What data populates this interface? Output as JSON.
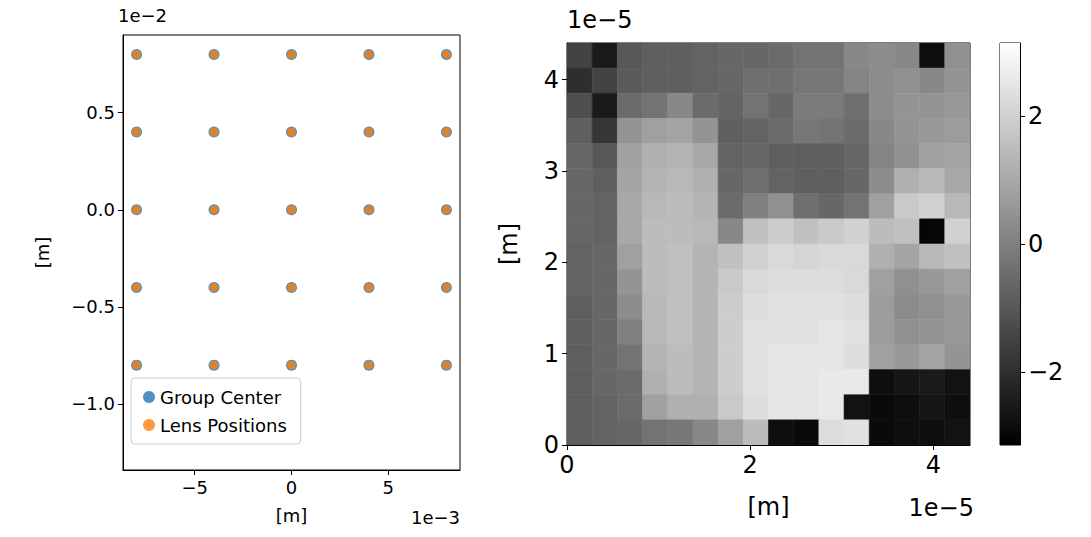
{
  "chart_data": [
    {
      "type": "scatter",
      "x_label": "[m]",
      "y_label": "[m]",
      "x_offset_label": "1e−3",
      "y_offset_label": "1e−2",
      "xlim": [
        -8.7,
        8.7
      ],
      "ylim": [
        -1.34,
        0.9
      ],
      "xticks": [
        {
          "value": -5,
          "label": "−5"
        },
        0,
        5
      ],
      "yticks": [
        {
          "value": -1.0,
          "label": "−1.0"
        },
        {
          "value": -0.5,
          "label": "−0.5"
        },
        {
          "value": 0,
          "label": "0.0"
        },
        0.5
      ],
      "legend": "lower left",
      "series": [
        {
          "name": "Group Center",
          "color": "#1f77b4",
          "marker": "circle",
          "x": [
            -8,
            -4,
            0,
            4,
            8,
            -8,
            -4,
            0,
            4,
            8,
            -8,
            -4,
            0,
            4,
            8,
            -8,
            -4,
            0,
            4,
            8,
            -8,
            -4,
            0,
            4,
            8
          ],
          "y": [
            0.8,
            0.8,
            0.8,
            0.8,
            0.8,
            0.4,
            0.4,
            0.4,
            0.4,
            0.4,
            0,
            0,
            0,
            0,
            0,
            -0.4,
            -0.4,
            -0.4,
            -0.4,
            -0.4,
            -0.8,
            -0.8,
            -0.8,
            -0.8,
            -0.8
          ]
        },
        {
          "name": "Lens Positions",
          "color": "#ff7f0e",
          "marker": "circle",
          "x": [
            -8,
            -4,
            0,
            4,
            8,
            -8,
            -4,
            0,
            4,
            8,
            -8,
            -4,
            0,
            4,
            8,
            -8,
            -4,
            0,
            4,
            8,
            -8,
            -4,
            0,
            4,
            8
          ],
          "y": [
            0.8,
            0.8,
            0.8,
            0.8,
            0.8,
            0.4,
            0.4,
            0.4,
            0.4,
            0.4,
            0,
            0,
            0,
            0,
            0,
            -0.4,
            -0.4,
            -0.4,
            -0.4,
            -0.4,
            -0.8,
            -0.8,
            -0.8,
            -0.8,
            -0.8
          ]
        }
      ]
    },
    {
      "type": "heatmap",
      "x_label": "[m]",
      "y_label": "[m]",
      "x_offset_label": "1e−5",
      "y_offset_label": "1e−5",
      "xlim": [
        0,
        4.4
      ],
      "ylim": [
        0,
        4.4
      ],
      "xticks": [
        0,
        2,
        4
      ],
      "yticks": [
        0,
        1,
        2,
        3,
        4
      ],
      "z": [
        [
          -1.5,
          -2.5,
          -1.0,
          -0.8,
          -0.8,
          -0.7,
          -0.6,
          -0.6,
          -0.5,
          -0.3,
          -0.3,
          0.2,
          0.3,
          0.2,
          -2.8,
          0.4
        ],
        [
          -2.0,
          -1.5,
          -0.9,
          -0.8,
          -0.8,
          -0.7,
          -0.6,
          -0.4,
          -0.4,
          -0.2,
          -0.2,
          0.1,
          0.3,
          0.4,
          0.2,
          0.5
        ],
        [
          -1.2,
          -2.5,
          -0.5,
          -0.3,
          0.2,
          -0.5,
          -0.7,
          -0.3,
          -0.6,
          -0.1,
          -0.1,
          -0.4,
          0.3,
          0.5,
          0.5,
          0.6
        ],
        [
          -0.8,
          -1.8,
          0.5,
          0.8,
          0.9,
          0.5,
          -0.8,
          -0.7,
          -0.5,
          -0.2,
          -0.3,
          -0.5,
          0.2,
          0.5,
          0.6,
          0.7
        ],
        [
          -0.6,
          -1.0,
          0.8,
          1.2,
          1.3,
          1.0,
          -0.7,
          -0.6,
          -0.8,
          -0.8,
          -0.8,
          -0.6,
          0.1,
          0.4,
          0.8,
          0.9
        ],
        [
          -0.6,
          -0.8,
          0.9,
          1.3,
          1.4,
          1.2,
          -0.6,
          -0.4,
          -0.7,
          -0.8,
          -0.8,
          -0.6,
          0.3,
          1.2,
          1.4,
          1.0
        ],
        [
          -0.6,
          -0.7,
          1.0,
          1.4,
          1.5,
          1.3,
          -0.5,
          0.0,
          0.4,
          -0.4,
          -0.6,
          -0.3,
          0.8,
          1.8,
          2.0,
          1.4
        ],
        [
          -0.6,
          -0.7,
          1.0,
          1.5,
          1.5,
          1.4,
          0.2,
          1.6,
          1.9,
          1.6,
          1.8,
          2.0,
          1.5,
          1.6,
          -3.0,
          2.0
        ],
        [
          -0.7,
          -0.6,
          0.8,
          1.5,
          1.6,
          1.3,
          1.6,
          2.0,
          2.2,
          2.1,
          2.2,
          2.2,
          1.2,
          0.9,
          1.4,
          1.6
        ],
        [
          -0.7,
          -0.6,
          0.5,
          1.5,
          1.6,
          1.3,
          1.8,
          2.2,
          2.3,
          2.3,
          2.3,
          2.2,
          0.8,
          0.4,
          0.6,
          0.8
        ],
        [
          -0.8,
          -0.6,
          0.3,
          1.4,
          1.6,
          1.3,
          1.9,
          2.3,
          2.4,
          2.4,
          2.4,
          2.3,
          0.7,
          0.3,
          0.4,
          0.6
        ],
        [
          -0.8,
          -0.6,
          0.0,
          1.4,
          1.6,
          1.3,
          1.9,
          2.4,
          2.4,
          2.4,
          2.5,
          2.4,
          0.7,
          0.4,
          0.5,
          0.6
        ],
        [
          -0.8,
          -0.6,
          -0.3,
          1.3,
          1.5,
          1.3,
          1.9,
          2.4,
          2.5,
          2.5,
          2.5,
          2.3,
          0.8,
          0.6,
          0.9,
          0.5
        ],
        [
          -0.8,
          -0.6,
          -0.5,
          1.2,
          1.5,
          1.3,
          1.9,
          2.4,
          2.5,
          2.5,
          2.6,
          2.6,
          -2.8,
          -2.6,
          -2.5,
          -2.7
        ],
        [
          -0.8,
          -0.7,
          -0.5,
          0.8,
          1.2,
          1.2,
          1.8,
          2.3,
          2.5,
          2.5,
          2.6,
          -2.7,
          -2.9,
          -2.8,
          -2.6,
          -2.8
        ],
        [
          -0.8,
          -0.7,
          -0.6,
          -0.3,
          -0.2,
          0.2,
          0.8,
          1.5,
          -2.8,
          -2.9,
          2.3,
          2.4,
          -2.9,
          -2.8,
          -2.8,
          -2.7
        ]
      ],
      "colorbar": {
        "range": [
          -3.14,
          3.14
        ],
        "ticks": [
          {
            "value": -2,
            "label": "−2"
          },
          0,
          2
        ]
      }
    }
  ]
}
